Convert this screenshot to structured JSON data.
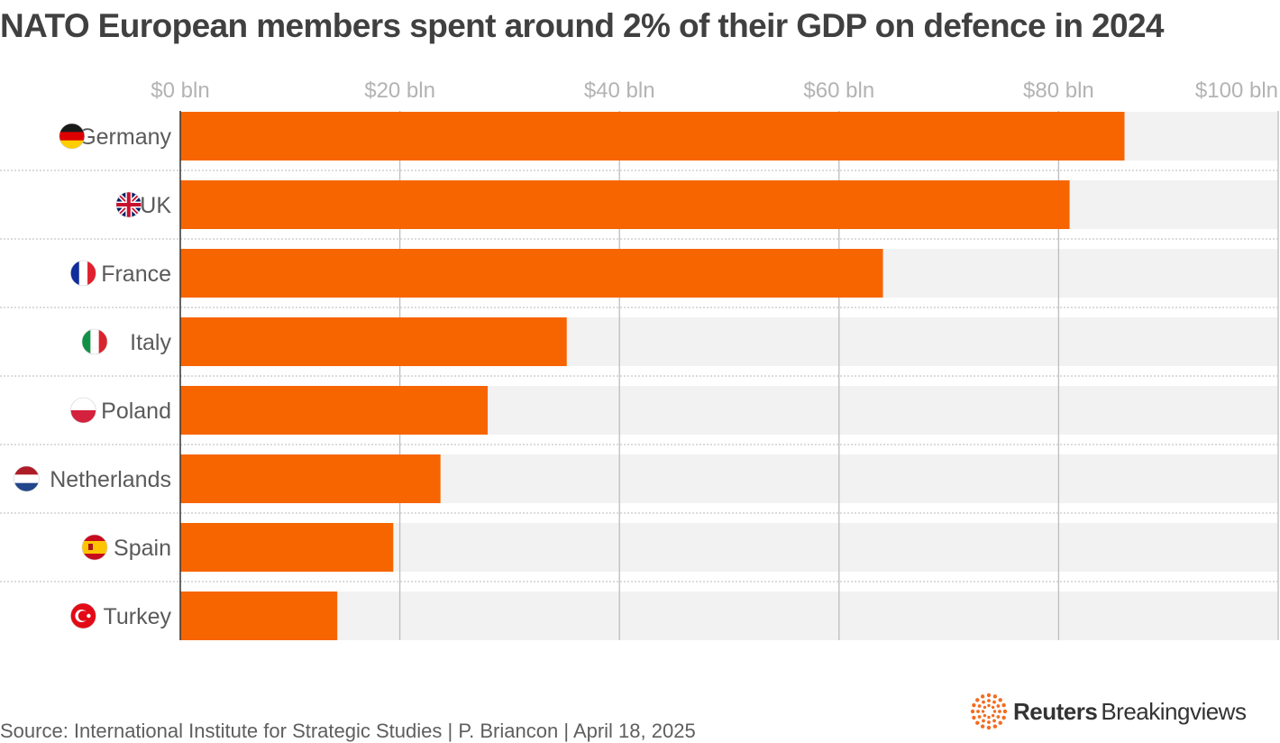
{
  "title": "NATO European members spent around 2% of their GDP on defence in 2024",
  "source": "Source: International Institute for Strategic Studies | P. Briancon | April 18, 2025",
  "logo": {
    "brand": "Reuters",
    "sub": "Breakingviews"
  },
  "colors": {
    "bar": "#f76500",
    "track": "#f2f2f2",
    "grid": "#bdbdbd",
    "axis": "#333333",
    "divider": "#c8c8c8"
  },
  "chart_data": {
    "type": "bar",
    "orientation": "horizontal",
    "title": "NATO European members spent around 2% of their GDP on defence in 2024",
    "xlabel": "",
    "ylabel": "",
    "xlim": [
      0,
      100
    ],
    "ticks": [
      0,
      20,
      40,
      60,
      80,
      100
    ],
    "tick_labels": [
      "$0 bln",
      "$20 bln",
      "$40 bln",
      "$60 bln",
      "$80 bln",
      "$100 bln"
    ],
    "categories": [
      "Germany",
      "UK",
      "France",
      "Italy",
      "Poland",
      "Netherlands",
      "Spain",
      "Turkey"
    ],
    "values": [
      86,
      81,
      64,
      35.2,
      28,
      23.7,
      19.4,
      14.3
    ],
    "flags": [
      "germany-flag",
      "uk-flag",
      "france-flag",
      "italy-flag",
      "poland-flag",
      "netherlands-flag",
      "spain-flag",
      "turkey-flag"
    ],
    "grid": true
  }
}
